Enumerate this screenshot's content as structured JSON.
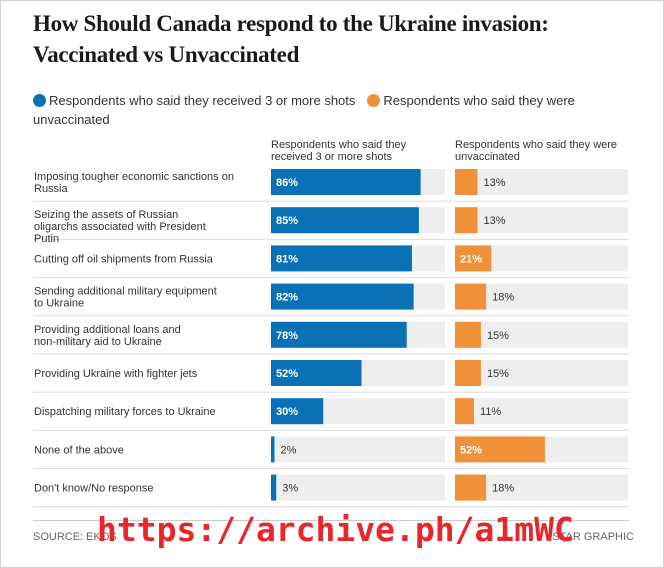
{
  "title": "How Should Canada respond to the Ukraine invasion: Vaccinated vs Unvaccinated",
  "legend": {
    "vaccinated": "Respondents who said they received 3 or more shots",
    "unvaccinated": "Respondents who said they were unvaccinated"
  },
  "columns": {
    "vaccinated": "Respondents who said they received 3 or more shots",
    "unvaccinated": "Respondents who said they were unvaccinated"
  },
  "colors": {
    "vaccinated": "#0a71b7",
    "unvaccinated": "#f0913a",
    "track": "#eeeeee"
  },
  "footer": {
    "source": "SOURCE: EKOS",
    "credit": "STAR GRAPHIC",
    "watermark": "https://archive.ph/a1mWC"
  },
  "chart_data": {
    "type": "bar",
    "orientation": "horizontal",
    "unit": "%",
    "xlim": [
      0,
      100
    ],
    "categories": [
      "Imposing tougher economic sanctions on Russia",
      "Seizing the assets of Russian oligarchs associated with President Putin",
      "Cutting off oil shipments from Russia",
      "Sending additional military equipment to Ukraine",
      "Providing additional loans and non-military aid to Ukraine",
      "Providing Ukraine with fighter jets",
      "Dispatching military forces to Ukraine",
      "None of the above",
      "Don't know/No response"
    ],
    "series": [
      {
        "name": "Respondents who said they received 3 or more shots",
        "values": [
          86,
          85,
          81,
          82,
          78,
          52,
          30,
          2,
          3
        ]
      },
      {
        "name": "Respondents who said they were unvaccinated",
        "values": [
          13,
          13,
          21,
          18,
          15,
          15,
          11,
          52,
          18
        ]
      }
    ]
  }
}
